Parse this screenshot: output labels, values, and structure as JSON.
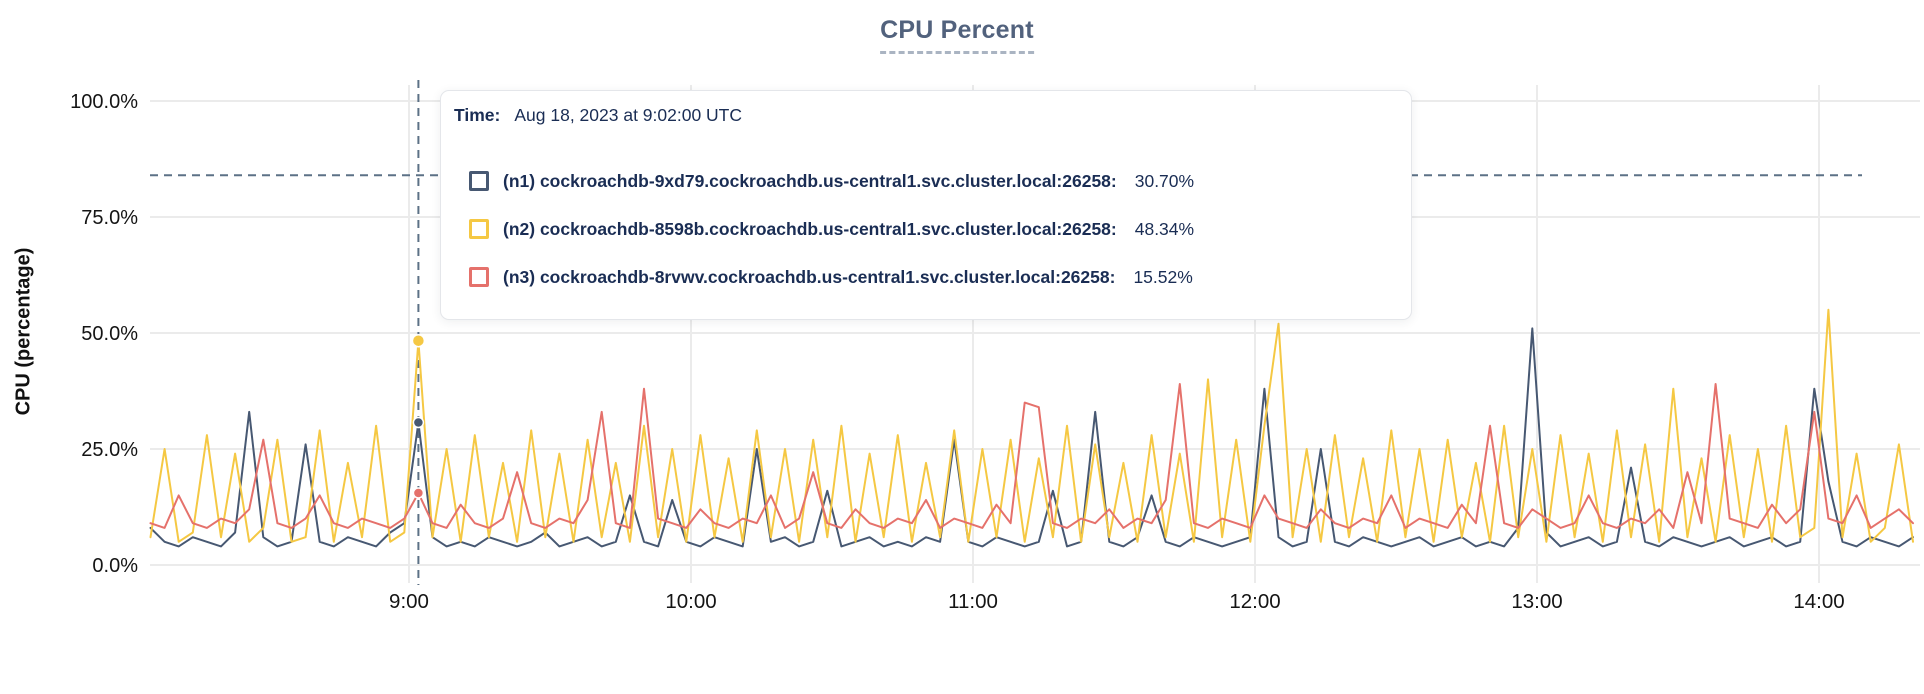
{
  "title": "CPU Percent",
  "tooltip": {
    "time_label": "Time:",
    "time_value": "Aug 18, 2023 at 9:02:00 UTC",
    "rows": [
      {
        "label": "(n1) cockroachdb-9xd79.cockroachdb.us-central1.svc.cluster.local:26258:",
        "value": "30.70%",
        "color": "#475872"
      },
      {
        "label": "(n2) cockroachdb-8598b.cockroachdb.us-central1.svc.cluster.local:26258:",
        "value": "48.34%",
        "color": "#f5c843"
      },
      {
        "label": "(n3) cockroachdb-8rvwv.cockroachdb.us-central1.svc.cluster.local:26258:",
        "value": "15.52%",
        "color": "#e5716b"
      }
    ]
  },
  "colors": {
    "title": "#52627d",
    "axis_text": "#141414",
    "grid": "#ebebeb",
    "crosshair": "#5c7186",
    "tooltip_text": "#1a2d54",
    "background": "#ffffff"
  },
  "chart_data": {
    "type": "line",
    "title": "CPU Percent",
    "xlabel": "",
    "ylabel": "CPU (percentage)",
    "ylim": [
      0,
      100
    ],
    "grid": true,
    "legend_position": "tooltip-overlay",
    "y_ticks": [
      "0.0%",
      "25.0%",
      "50.0%",
      "75.0%",
      "100.0%"
    ],
    "y_tick_values": [
      0,
      25,
      50,
      75,
      100
    ],
    "x_ticks": [
      "9:00",
      "10:00",
      "11:00",
      "12:00",
      "13:00",
      "14:00"
    ],
    "x_tick_minutes": [
      540,
      600,
      660,
      720,
      780,
      840
    ],
    "x_start_minutes": 485,
    "x_step_minutes": 3,
    "x_range_minutes": [
      485,
      860
    ],
    "crosshair": {
      "x_minute": 542,
      "y_percent": 84,
      "time": "Aug 18, 2023 at 9:02:00 UTC"
    },
    "series": [
      {
        "name": "(n1) cockroachdb-9xd79.cockroachdb.us-central1.svc.cluster.local:26258",
        "color": "#475872",
        "highlight_value": 30.7,
        "values": [
          8,
          5,
          4,
          6,
          5,
          4,
          7,
          33,
          6,
          4,
          5,
          26,
          5,
          4,
          6,
          5,
          4,
          7,
          9,
          30.7,
          6,
          4,
          5,
          4,
          6,
          5,
          4,
          5,
          7,
          4,
          5,
          6,
          4,
          5,
          15,
          5,
          4,
          14,
          5,
          4,
          6,
          5,
          4,
          25,
          5,
          6,
          4,
          5,
          16,
          4,
          5,
          6,
          4,
          5,
          4,
          6,
          5,
          27,
          5,
          4,
          6,
          5,
          4,
          5,
          16,
          4,
          5,
          33,
          5,
          4,
          6,
          15,
          5,
          4,
          6,
          5,
          4,
          5,
          6,
          38,
          6,
          4,
          5,
          25,
          5,
          4,
          6,
          5,
          4,
          5,
          6,
          4,
          5,
          6,
          4,
          5,
          4,
          8,
          51,
          7,
          4,
          5,
          6,
          4,
          5,
          21,
          5,
          4,
          6,
          5,
          4,
          5,
          6,
          4,
          5,
          6,
          4,
          5,
          38,
          18,
          5,
          4,
          6,
          5,
          4,
          6
        ]
      },
      {
        "name": "(n2) cockroachdb-8598b.cockroachdb.us-central1.svc.cluster.local:26258",
        "color": "#f5c843",
        "highlight_value": 48.34,
        "values": [
          6,
          25,
          5,
          7,
          28,
          6,
          24,
          5,
          8,
          27,
          5,
          6,
          29,
          5,
          22,
          6,
          30,
          5,
          7,
          48.3,
          6,
          25,
          5,
          28,
          6,
          22,
          5,
          29,
          6,
          24,
          5,
          27,
          6,
          22,
          5,
          30,
          6,
          25,
          5,
          28,
          6,
          23,
          5,
          29,
          6,
          25,
          5,
          27,
          6,
          30,
          5,
          24,
          6,
          28,
          5,
          22,
          6,
          29,
          5,
          25,
          6,
          27,
          5,
          23,
          6,
          30,
          5,
          26,
          6,
          22,
          5,
          28,
          6,
          24,
          5,
          40,
          6,
          27,
          5,
          30,
          52,
          6,
          25,
          5,
          28,
          6,
          23,
          5,
          29,
          6,
          25,
          5,
          27,
          6,
          22,
          5,
          30,
          6,
          25,
          5,
          28,
          6,
          24,
          5,
          29,
          6,
          26,
          5,
          38,
          6,
          23,
          5,
          28,
          6,
          25,
          5,
          30,
          6,
          8,
          55,
          6,
          24,
          5,
          8,
          26,
          5
        ]
      },
      {
        "name": "(n3) cockroachdb-8rvwv.cockroachdb.us-central1.svc.cluster.local:26258",
        "color": "#e5716b",
        "highlight_value": 15.52,
        "values": [
          9,
          8,
          15,
          9,
          8,
          10,
          9,
          12,
          27,
          9,
          8,
          10,
          15,
          9,
          8,
          10,
          9,
          8,
          10,
          15.5,
          9,
          8,
          13,
          9,
          8,
          10,
          20,
          9,
          8,
          10,
          9,
          14,
          33,
          9,
          8,
          38,
          10,
          9,
          8,
          12,
          9,
          8,
          10,
          9,
          15,
          8,
          10,
          20,
          9,
          8,
          12,
          9,
          8,
          10,
          9,
          14,
          8,
          10,
          9,
          8,
          13,
          9,
          35,
          34,
          9,
          8,
          10,
          9,
          12,
          8,
          10,
          9,
          14,
          39,
          9,
          8,
          10,
          9,
          8,
          15,
          10,
          9,
          8,
          12,
          9,
          8,
          10,
          9,
          15,
          8,
          10,
          9,
          8,
          13,
          9,
          30,
          9,
          8,
          12,
          10,
          8,
          9,
          15,
          9,
          8,
          10,
          9,
          12,
          8,
          20,
          9,
          39,
          10,
          9,
          8,
          13,
          9,
          12,
          33,
          10,
          9,
          15,
          8,
          10,
          12,
          9
        ]
      }
    ]
  }
}
